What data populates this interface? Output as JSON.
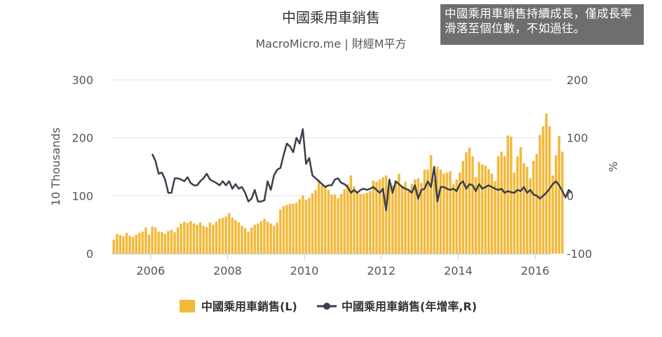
{
  "note": {
    "text": "中國乘用車銷售持續成長，僅成長率滑落至個位數，不如過往。"
  },
  "chart_data": {
    "type": "bar+line",
    "title": "中國乘用車銷售",
    "subtitle": "MacroMicro.me | 財經M平方",
    "ylabel_left": "10 Thousands",
    "ylabel_right": "%",
    "ylim_left": [
      0,
      300
    ],
    "ylim_right": [
      -100,
      200
    ],
    "yticks_left": [
      "0",
      "100",
      "200",
      "300"
    ],
    "yticks_right": [
      "-100",
      "0",
      "100",
      "200"
    ],
    "xticks": [
      "2006",
      "2008",
      "2010",
      "2012",
      "2014",
      "2016"
    ],
    "xlim": [
      2005.0,
      2016.4
    ],
    "legend": {
      "placement": "bottom"
    },
    "colors": {
      "bars": "#f2b93b",
      "line": "#3b3f4a"
    },
    "series": [
      {
        "name": "中國乘用車銷售(L)",
        "kind": "bar",
        "axis": "left",
        "x_start": "2005-01",
        "frequency": "monthly",
        "values": [
          24,
          34,
          32,
          30,
          36,
          31,
          29,
          33,
          36,
          38,
          45,
          33,
          47,
          45,
          38,
          37,
          34,
          39,
          41,
          37,
          45,
          52,
          55,
          53,
          56,
          52,
          50,
          54,
          48,
          46,
          54,
          50,
          55,
          60,
          62,
          64,
          70,
          62,
          58,
          54,
          48,
          44,
          38,
          45,
          50,
          52,
          56,
          60,
          55,
          52,
          48,
          54,
          76,
          82,
          84,
          86,
          86,
          88,
          94,
          100,
          93,
          96,
          104,
          110,
          128,
          118,
          118,
          110,
          102,
          102,
          96,
          103,
          111,
          120,
          135,
          116,
          108,
          103,
          103,
          105,
          108,
          126,
          124,
          128,
          132,
          135,
          115,
          118,
          125,
          138,
          117,
          124,
          111,
          120,
          128,
          130,
          122,
          145,
          145,
          170,
          128,
          150,
          145,
          138,
          140,
          142,
          120,
          128,
          140,
          160,
          175,
          183,
          168,
          132,
          158,
          154,
          152,
          146,
          138,
          125,
          168,
          176,
          168,
          204,
          202,
          140,
          168,
          184,
          156,
          150,
          130,
          160,
          172,
          205,
          220,
          242,
          220,
          135,
          170,
          203,
          176
        ]
      },
      {
        "name": "中國乘用車銷售(年增率,R)",
        "kind": "line",
        "axis": "right",
        "x_start": "2006-01",
        "frequency": "monthly",
        "values": [
          72,
          60,
          38,
          40,
          28,
          5,
          5,
          30,
          30,
          28,
          25,
          32,
          22,
          18,
          18,
          25,
          30,
          38,
          28,
          25,
          22,
          18,
          25,
          18,
          25,
          12,
          20,
          12,
          15,
          5,
          -10,
          -5,
          10,
          -10,
          -10,
          -8,
          25,
          10,
          35,
          45,
          48,
          70,
          90,
          85,
          75,
          100,
          90,
          115,
          55,
          65,
          35,
          30,
          25,
          20,
          15,
          18,
          18,
          28,
          30,
          22,
          20,
          15,
          5,
          10,
          5,
          10,
          12,
          10,
          12,
          15,
          10,
          5,
          12,
          -25,
          28,
          5,
          25,
          20,
          15,
          12,
          10,
          5,
          18,
          -5,
          10,
          12,
          25,
          15,
          50,
          -10,
          15,
          15,
          12,
          10,
          12,
          8,
          20,
          25,
          12,
          20,
          18,
          8,
          20,
          12,
          15,
          18,
          15,
          12,
          10,
          12,
          5,
          8,
          6,
          5,
          10,
          8,
          15,
          5,
          10,
          2,
          0,
          -5,
          0,
          5,
          12,
          20,
          25,
          18,
          8,
          -3,
          10,
          5
        ]
      }
    ]
  }
}
